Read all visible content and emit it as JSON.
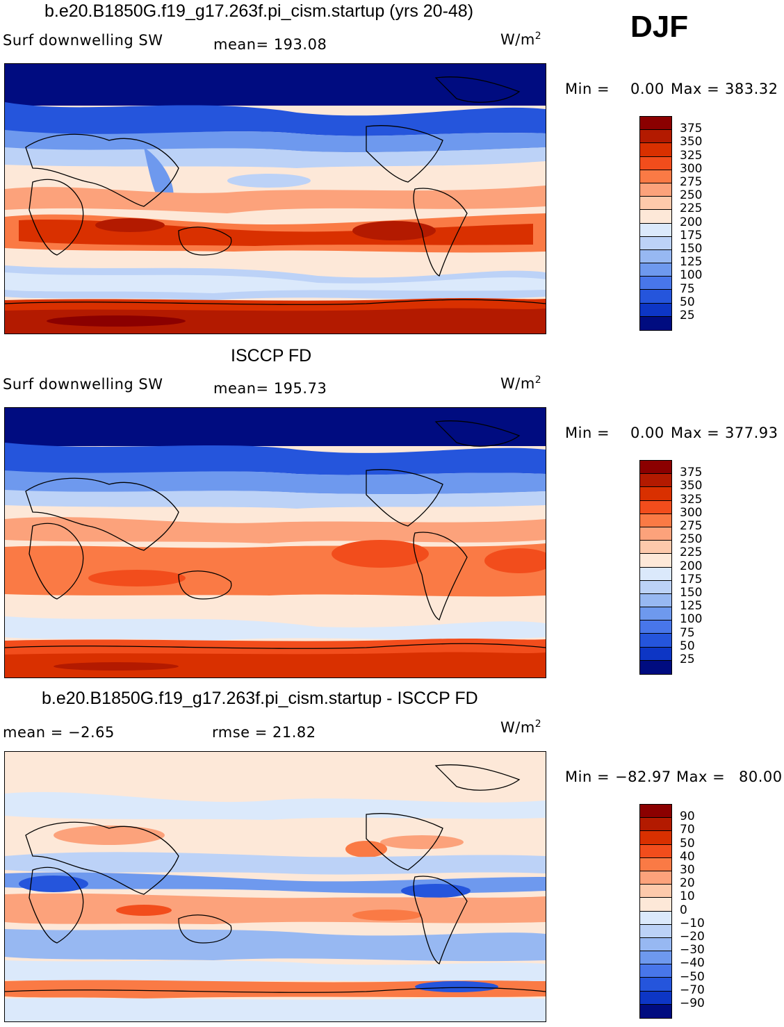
{
  "season": "DJF",
  "panels": [
    {
      "title": "b.e20.B1850G.f19_g17.263f.pi_cism.startup (yrs 20-48)",
      "left_label": "Surf  downwelling  SW",
      "mid_label": "mean=  193.08",
      "units_base": "W/m",
      "units_exp": "2",
      "min_label": "Min  =",
      "min_value": "0.00",
      "max_label": "Max  =",
      "max_value": "383.32"
    },
    {
      "title": "ISCCP FD",
      "left_label": "Surf  downwelling  SW",
      "mid_label": "mean=  195.73",
      "units_base": "W/m",
      "units_exp": "2",
      "min_label": "Min  =",
      "min_value": "0.00",
      "max_label": "Max  =",
      "max_value": "377.93"
    },
    {
      "title": "b.e20.B1850G.f19_g17.263f.pi_cism.startup - ISCCP FD",
      "left_label": "mean  =    −2.65",
      "mid_label": "rmse  =    21.82",
      "units_base": "W/m",
      "units_exp": "2",
      "min_label": "Min  =",
      "min_value": "−82.97",
      "max_label": "Max  =",
      "max_value": "80.00"
    }
  ],
  "chart_data": [
    {
      "type": "heatmap",
      "variable": "Surf  downwelling  SW",
      "mean": 193.08,
      "min": 0.0,
      "max": 383.32,
      "colorbar_levels": [
        "375",
        "350",
        "325",
        "300",
        "275",
        "250",
        "225",
        "200",
        "175",
        "150",
        "125",
        "100",
        "75",
        "50",
        "25"
      ],
      "colorbar_colors": [
        "#8b0000",
        "#b31a00",
        "#d93000",
        "#f24d1c",
        "#fa7a45",
        "#fca27b",
        "#fdc9ab",
        "#fde8d8",
        "#dbe9fb",
        "#bcd2f7",
        "#97b8f2",
        "#6e99ee",
        "#4876ea",
        "#2555dc",
        "#0d36c5",
        "#000c80"
      ]
    },
    {
      "type": "heatmap",
      "variable": "Surf  downwelling  SW",
      "mean": 195.73,
      "min": 0.0,
      "max": 377.93,
      "colorbar_levels": [
        "375",
        "350",
        "325",
        "300",
        "275",
        "250",
        "225",
        "200",
        "175",
        "150",
        "125",
        "100",
        "75",
        "50",
        "25"
      ],
      "colorbar_colors": [
        "#8b0000",
        "#b31a00",
        "#d93000",
        "#f24d1c",
        "#fa7a45",
        "#fca27b",
        "#fdc9ab",
        "#fde8d8",
        "#dbe9fb",
        "#bcd2f7",
        "#97b8f2",
        "#6e99ee",
        "#4876ea",
        "#2555dc",
        "#0d36c5",
        "#000c80"
      ]
    },
    {
      "type": "heatmap",
      "variable": "difference",
      "mean": -2.65,
      "rmse": 21.82,
      "min": -82.97,
      "max": 80.0,
      "colorbar_levels": [
        "90",
        "70",
        "50",
        "40",
        "30",
        "20",
        "10",
        "0",
        "−10",
        "−20",
        "−30",
        "−40",
        "−50",
        "−70",
        "−90"
      ],
      "colorbar_colors": [
        "#8b0000",
        "#b31a00",
        "#d93000",
        "#f24d1c",
        "#fa7a45",
        "#fca27b",
        "#fdc9ab",
        "#fde8d8",
        "#dbe9fb",
        "#bcd2f7",
        "#97b8f2",
        "#6e99ee",
        "#4876ea",
        "#2555dc",
        "#0d36c5",
        "#000c80"
      ]
    }
  ]
}
